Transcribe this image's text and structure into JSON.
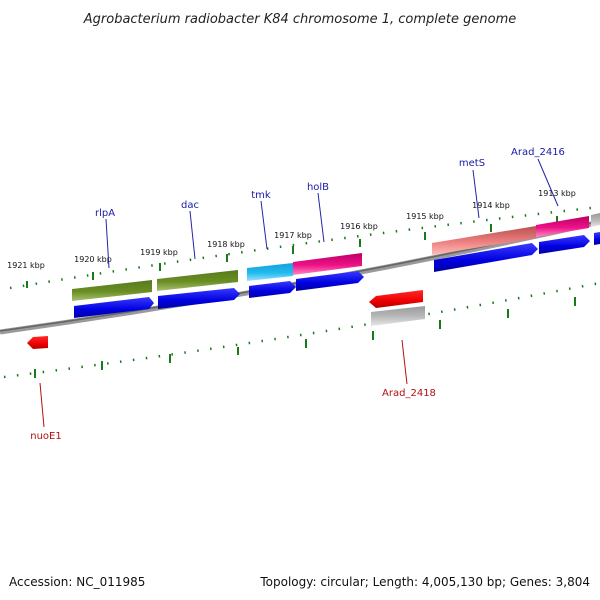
{
  "header": {
    "title": "Agrobacterium radiobacter K84 chromosome 1, complete genome"
  },
  "ticks": [
    {
      "label": "1921 kbp"
    },
    {
      "label": "1920 kbp"
    },
    {
      "label": "1919 kbp"
    },
    {
      "label": "1918 kbp"
    },
    {
      "label": "1917 kbp"
    },
    {
      "label": "1916 kbp"
    },
    {
      "label": "1915 kbp"
    },
    {
      "label": "1914 kbp"
    },
    {
      "label": "1913 kbp"
    }
  ],
  "gene_labels": {
    "forward": [
      {
        "name": "rlpA"
      },
      {
        "name": "dac"
      },
      {
        "name": "tmk"
      },
      {
        "name": "holB"
      },
      {
        "name": "metS"
      },
      {
        "name": "Arad_2416"
      }
    ],
    "reverse": [
      {
        "name": "Arad_2418"
      },
      {
        "name": "nuoE1"
      }
    ]
  },
  "colors": {
    "cds_blue": "#0000ee",
    "olive": "#6b8e23",
    "cyan": "#22bbee",
    "magenta": "#ee1188",
    "salmon": "#ee7777",
    "gray": "#aaaaaa",
    "red": "#ee0000",
    "tick_green": "#1a7a1a",
    "backbone": "#777777"
  },
  "footer": {
    "accession": "Accession: NC_011985",
    "stats": "Topology: circular; Length: 4,005,130 bp; Genes: 3,804"
  }
}
